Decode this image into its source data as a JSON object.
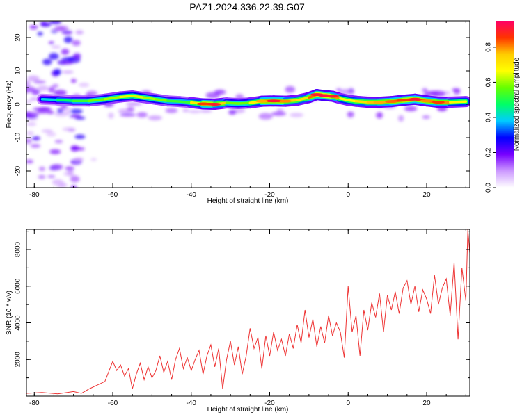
{
  "title": "PAZ1.2024.336.22.39.G07",
  "chart_data": [
    {
      "type": "heatmap",
      "xlabel": "Height of straight line (km)",
      "ylabel": "Frequency (Hz)",
      "xlim": [
        -82,
        31
      ],
      "ylim": [
        -25,
        25
      ],
      "xticks": [
        -80,
        -60,
        -40,
        -20,
        0,
        20
      ],
      "yticks": [
        -20,
        -10,
        0,
        10,
        20
      ],
      "colorbar": {
        "label": "Normalized spectral amplitude",
        "range": [
          0,
          0.95
        ],
        "ticks": [
          0.0,
          0.2,
          0.4,
          0.6,
          0.8
        ],
        "stops": [
          "#ffffff",
          "#cc99ff",
          "#7700ff",
          "#0000ff",
          "#00ccff",
          "#00ff66",
          "#66ff00",
          "#ffff00",
          "#ffcc00",
          "#ff3300",
          "#ff0066"
        ]
      },
      "ridge": {
        "x": [
          -78,
          -74,
          -70,
          -66,
          -62,
          -58,
          -55,
          -52,
          -49,
          -46,
          -43,
          -40,
          -37,
          -34,
          -31,
          -28,
          -25,
          -22,
          -19,
          -16,
          -13,
          -10,
          -8,
          -6,
          -4,
          -2,
          0,
          2,
          5,
          8,
          11,
          14,
          17,
          20,
          23,
          26,
          30
        ],
        "frequency": [
          1.5,
          1.3,
          1.0,
          1.0,
          1.5,
          2.2,
          2.5,
          2.0,
          1.5,
          1.0,
          0.8,
          0.5,
          0.1,
          0.0,
          0.4,
          0.2,
          0.4,
          0.9,
          1.0,
          0.9,
          1.2,
          2.0,
          2.9,
          2.6,
          2.4,
          1.7,
          1.2,
          0.9,
          0.6,
          0.6,
          0.8,
          1.2,
          1.5,
          1.0,
          0.6,
          0.6,
          0.8
        ],
        "amplitude": [
          0.35,
          0.45,
          0.5,
          0.55,
          0.6,
          0.62,
          0.68,
          0.6,
          0.62,
          0.55,
          0.5,
          0.55,
          0.85,
          0.9,
          0.6,
          0.55,
          0.6,
          0.78,
          0.9,
          0.8,
          0.7,
          0.75,
          0.9,
          0.92,
          0.9,
          0.7,
          0.65,
          0.7,
          0.75,
          0.78,
          0.82,
          0.85,
          0.9,
          0.8,
          0.85,
          0.75,
          0.6
        ]
      }
    },
    {
      "type": "line",
      "xlabel": "Height of straight line (km)",
      "ylabel": "SNR (10 * v/v)",
      "xlim": [
        -82,
        31
      ],
      "ylim": [
        0,
        9100
      ],
      "xticks": [
        -80,
        -60,
        -40,
        -20,
        0,
        20
      ],
      "yticks": [
        2000,
        4000,
        6000,
        8000
      ],
      "series": [
        {
          "color": "#ee3333",
          "x": [
            -82,
            -78,
            -74,
            -70,
            -68,
            -66,
            -64,
            -62,
            -60,
            -59,
            -58,
            -57,
            -56,
            -55,
            -54,
            -53,
            -52,
            -51,
            -50,
            -49,
            -48,
            -47,
            -46,
            -45,
            -44,
            -43,
            -42,
            -41,
            -40,
            -39,
            -38,
            -37,
            -36,
            -35,
            -34,
            -33,
            -32,
            -31,
            -30,
            -29,
            -28,
            -27,
            -26,
            -25,
            -24,
            -23,
            -22,
            -21,
            -20,
            -19,
            -18,
            -17,
            -16,
            -15,
            -14,
            -13,
            -12,
            -11,
            -10,
            -9,
            -8,
            -7,
            -6,
            -5,
            -4,
            -3,
            -2,
            -1,
            0,
            1,
            2,
            3,
            4,
            5,
            6,
            7,
            8,
            9,
            10,
            11,
            12,
            13,
            14,
            15,
            16,
            17,
            18,
            19,
            20,
            21,
            22,
            23,
            24,
            25,
            26,
            27,
            28,
            29,
            30,
            30.5,
            31
          ],
          "y": [
            150,
            200,
            120,
            250,
            150,
            400,
            600,
            800,
            1900,
            1400,
            1700,
            1100,
            1500,
            400,
            1200,
            1800,
            900,
            1600,
            1000,
            1400,
            2200,
            1300,
            1900,
            900,
            2000,
            2600,
            1500,
            2100,
            1400,
            2000,
            2500,
            1200,
            2200,
            2800,
            1600,
            2600,
            400,
            2000,
            3000,
            1700,
            2700,
            1200,
            2200,
            3700,
            2600,
            3200,
            1500,
            3300,
            2200,
            3500,
            2500,
            3100,
            2200,
            3400,
            2600,
            3900,
            2900,
            4700,
            3200,
            4200,
            2700,
            3800,
            2900,
            4400,
            3300,
            4000,
            3500,
            2100,
            6000,
            3500,
            4400,
            2200,
            4700,
            3600,
            5100,
            4300,
            5600,
            3500,
            5500,
            4700,
            5700,
            4500,
            5900,
            6300,
            5000,
            6000,
            4600,
            5800,
            5300,
            4500,
            6600,
            5000,
            5900,
            6400,
            4400,
            7300,
            3100,
            7000,
            5200,
            9100,
            7800
          ]
        }
      ]
    }
  ]
}
